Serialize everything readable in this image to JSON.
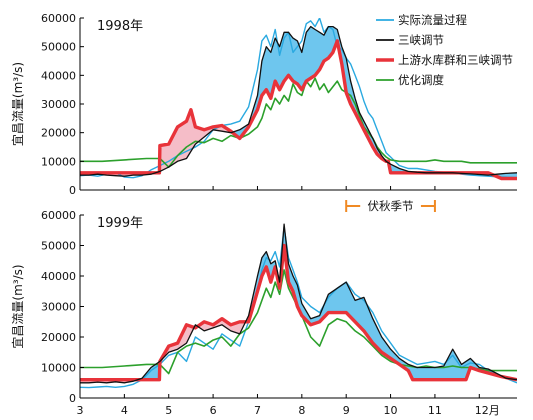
{
  "chart_data": [
    {
      "type": "line",
      "year_label": "1998年",
      "ylabel": "宜昌流量(m³/s)",
      "ylim": [
        0,
        60000
      ],
      "yticks": [
        "0",
        "10000",
        "20000",
        "30000",
        "40000",
        "50000",
        "60000"
      ],
      "xlim": [
        3,
        12.85
      ],
      "annotation": "伏秋季节",
      "annotation_range": [
        9,
        11
      ],
      "legend_position": "top-right",
      "colors": {
        "actual": "#2aa9e0",
        "three_gorges": "#111111",
        "upstream_three_gorges": "#e8333a",
        "optimized": "#2ca02c",
        "fill_blue": "#5ec0ec",
        "fill_pink": "#f4b6c2"
      },
      "series": [
        {
          "name": "实际流量过程",
          "key": "actual",
          "x": [
            3,
            3.2,
            3.4,
            3.6,
            3.8,
            4,
            4.2,
            4.4,
            4.6,
            4.8,
            5,
            5.2,
            5.4,
            5.6,
            5.8,
            6,
            6.2,
            6.4,
            6.6,
            6.8,
            7,
            7.1,
            7.2,
            7.3,
            7.4,
            7.5,
            7.6,
            7.7,
            7.8,
            7.9,
            8,
            8.1,
            8.2,
            8.3,
            8.4,
            8.5,
            8.6,
            8.7,
            8.8,
            8.9,
            9,
            9.1,
            9.2,
            9.3,
            9.4,
            9.5,
            9.6,
            9.7,
            9.8,
            9.9,
            10,
            10.2,
            10.4,
            10.6,
            10.8,
            11,
            11.2,
            11.4,
            11.6,
            11.8,
            12,
            12.2,
            12.4,
            12.6,
            12.85
          ],
          "values": [
            5000,
            5200,
            4800,
            5500,
            6000,
            4500,
            4300,
            5000,
            7000,
            8500,
            10000,
            12000,
            13500,
            15000,
            17000,
            21000,
            22500,
            23000,
            24000,
            29000,
            42000,
            52000,
            54000,
            50000,
            56000,
            47000,
            53000,
            55000,
            48000,
            50000,
            52000,
            58000,
            59000,
            57000,
            60000,
            55000,
            57000,
            56000,
            50000,
            49000,
            46000,
            44000,
            40000,
            36000,
            31000,
            27000,
            25000,
            21000,
            17000,
            13000,
            11500,
            8500,
            7500,
            7500,
            7000,
            6500,
            6200,
            6000,
            5500,
            5200,
            5000,
            4800,
            4600,
            4500,
            4300
          ]
        },
        {
          "name": "三峡调节",
          "key": "three_gorges",
          "x": [
            3,
            3.2,
            3.4,
            3.6,
            3.8,
            4,
            4.2,
            4.4,
            4.6,
            4.8,
            5,
            5.2,
            5.4,
            5.6,
            5.8,
            6,
            6.2,
            6.4,
            6.6,
            6.8,
            7,
            7.1,
            7.2,
            7.3,
            7.4,
            7.5,
            7.6,
            7.7,
            7.8,
            7.9,
            8,
            8.1,
            8.2,
            8.3,
            8.4,
            8.5,
            8.6,
            8.7,
            8.8,
            8.9,
            9,
            9.1,
            9.2,
            9.3,
            9.4,
            9.5,
            9.6,
            9.7,
            9.8,
            9.9,
            10,
            10.2,
            10.4,
            10.6,
            10.8,
            11,
            11.2,
            11.4,
            11.6,
            11.8,
            12,
            12.2,
            12.4,
            12.6,
            12.85
          ],
          "values": [
            5200,
            5200,
            5500,
            5200,
            5000,
            4800,
            5200,
            5200,
            5500,
            6500,
            8000,
            10000,
            11000,
            16000,
            18500,
            21000,
            20500,
            20000,
            21000,
            23000,
            33000,
            45000,
            50000,
            48000,
            53000,
            50000,
            55000,
            55000,
            53000,
            52000,
            48000,
            55000,
            57000,
            56000,
            55000,
            54000,
            57000,
            57000,
            56000,
            50000,
            46000,
            38000,
            32000,
            27000,
            24000,
            21000,
            18000,
            14500,
            12000,
            10000,
            9000,
            7500,
            6500,
            6200,
            6000,
            6000,
            6000,
            6000,
            5800,
            5600,
            5400,
            5200,
            5500,
            5800,
            6000
          ]
        },
        {
          "name": "上游水库群和三峡调节",
          "key": "upstream_three_gorges",
          "x": [
            3,
            3.5,
            4,
            4.3,
            4.5,
            4.79,
            4.8,
            5,
            5.2,
            5.4,
            5.5,
            5.6,
            5.8,
            6,
            6.2,
            6.4,
            6.6,
            6.8,
            7,
            7.1,
            7.2,
            7.3,
            7.4,
            7.5,
            7.6,
            7.7,
            7.8,
            7.9,
            8,
            8.1,
            8.2,
            8.3,
            8.4,
            8.5,
            8.6,
            8.7,
            8.8,
            8.9,
            9,
            9.1,
            9.2,
            9.3,
            9.4,
            9.5,
            9.6,
            9.7,
            9.8,
            9.9,
            9.95,
            10,
            10.5,
            11,
            11.5,
            12,
            12.2,
            12.5,
            12.85
          ],
          "values": [
            6000,
            6000,
            6000,
            6000,
            6000,
            6000,
            15500,
            16000,
            22000,
            24000,
            28000,
            22000,
            21000,
            22000,
            22500,
            20500,
            18000,
            22000,
            28000,
            33000,
            35000,
            32000,
            38000,
            35000,
            38000,
            40000,
            38000,
            37000,
            35000,
            38000,
            39000,
            40000,
            42000,
            45000,
            46000,
            48000,
            52000,
            44000,
            34000,
            30000,
            27000,
            24000,
            21000,
            18000,
            15000,
            12500,
            11000,
            10000,
            10000,
            6000,
            6000,
            6000,
            6000,
            6000,
            6000,
            4000,
            4000
          ]
        },
        {
          "name": "优化调度",
          "key": "optimized",
          "x": [
            3,
            3.5,
            4,
            4.5,
            4.8,
            5,
            5.2,
            5.4,
            5.6,
            5.8,
            6,
            6.2,
            6.4,
            6.6,
            6.8,
            7,
            7.1,
            7.2,
            7.3,
            7.4,
            7.5,
            7.6,
            7.7,
            7.8,
            7.9,
            8,
            8.1,
            8.2,
            8.3,
            8.4,
            8.5,
            8.6,
            8.7,
            8.8,
            8.9,
            9,
            9.1,
            9.2,
            9.3,
            9.4,
            9.5,
            9.6,
            9.7,
            9.8,
            9.9,
            10,
            10.2,
            10.4,
            10.6,
            10.8,
            11,
            11.2,
            11.4,
            11.6,
            11.8,
            12,
            12.2,
            12.4,
            12.6,
            12.85
          ],
          "values": [
            10000,
            10000,
            10500,
            11000,
            11000,
            8000,
            12000,
            15000,
            17000,
            16500,
            18000,
            17000,
            19000,
            18000,
            19500,
            22000,
            25000,
            30000,
            28000,
            32000,
            30000,
            33000,
            31000,
            37000,
            34000,
            33000,
            38000,
            36000,
            39000,
            35000,
            37000,
            34000,
            36000,
            38000,
            35000,
            34000,
            33000,
            30000,
            26000,
            22000,
            20000,
            18000,
            15000,
            13000,
            11500,
            10500,
            10000,
            10000,
            10000,
            10000,
            10500,
            10000,
            10000,
            10000,
            9500,
            9500,
            9500,
            9500,
            9500,
            9500
          ]
        }
      ]
    },
    {
      "type": "line",
      "year_label": "1999年",
      "ylabel": "宜昌流量(m³/s)",
      "ylim": [
        0,
        60000
      ],
      "yticks": [
        "0",
        "10000",
        "20000",
        "30000",
        "40000",
        "50000",
        "60000"
      ],
      "xlim": [
        3,
        12.85
      ],
      "xticks": [
        "3",
        "4",
        "5",
        "6",
        "7",
        "8",
        "9",
        "10",
        "11",
        "12月"
      ],
      "colors": {
        "actual": "#2aa9e0",
        "three_gorges": "#111111",
        "upstream_three_gorges": "#e8333a",
        "optimized": "#2ca02c",
        "fill_blue": "#5ec0ec",
        "fill_pink": "#f4b6c2"
      },
      "series": [
        {
          "key": "actual",
          "x": [
            3,
            3.2,
            3.4,
            3.6,
            3.8,
            4,
            4.2,
            4.4,
            4.6,
            4.8,
            5,
            5.2,
            5.4,
            5.6,
            5.8,
            6,
            6.2,
            6.4,
            6.6,
            6.8,
            7,
            7.1,
            7.2,
            7.3,
            7.4,
            7.5,
            7.6,
            7.7,
            7.8,
            7.9,
            8,
            8.2,
            8.4,
            8.6,
            8.8,
            9,
            9.2,
            9.4,
            9.6,
            9.8,
            10,
            10.2,
            10.4,
            10.6,
            10.8,
            11,
            11.2,
            11.4,
            11.6,
            11.8,
            12,
            12.2,
            12.4,
            12.6,
            12.85
          ],
          "values": [
            3500,
            3400,
            3600,
            3800,
            3500,
            3800,
            4500,
            6000,
            9000,
            11000,
            14000,
            15000,
            12000,
            20000,
            18000,
            16000,
            21000,
            19000,
            17000,
            25000,
            35000,
            42000,
            46000,
            45000,
            48000,
            43000,
            56000,
            46000,
            42000,
            38000,
            33000,
            30000,
            28000,
            33000,
            36000,
            38000,
            34000,
            32000,
            28000,
            22000,
            18000,
            14000,
            12500,
            11000,
            11500,
            12000,
            11000,
            14000,
            10000,
            11500,
            11000,
            9000,
            8000,
            6500,
            5000
          ]
        },
        {
          "key": "three_gorges",
          "x": [
            3,
            3.2,
            3.4,
            3.6,
            3.8,
            4,
            4.2,
            4.4,
            4.6,
            4.8,
            5,
            5.2,
            5.4,
            5.6,
            5.8,
            6,
            6.2,
            6.4,
            6.6,
            6.8,
            7,
            7.1,
            7.2,
            7.3,
            7.4,
            7.5,
            7.6,
            7.7,
            7.8,
            7.9,
            8,
            8.2,
            8.4,
            8.6,
            8.8,
            9,
            9.2,
            9.4,
            9.6,
            9.8,
            10,
            10.2,
            10.4,
            10.6,
            10.8,
            11,
            11.2,
            11.4,
            11.6,
            11.8,
            12,
            12.2,
            12.4,
            12.6,
            12.85
          ],
          "values": [
            5000,
            5000,
            5200,
            5000,
            5300,
            5000,
            5500,
            6500,
            10000,
            12000,
            15000,
            16000,
            18000,
            24000,
            22000,
            23000,
            24000,
            22000,
            21000,
            27000,
            40000,
            46000,
            48000,
            44000,
            45000,
            38000,
            57000,
            44000,
            40000,
            37000,
            31000,
            26000,
            27000,
            34000,
            36000,
            38000,
            32000,
            33000,
            26000,
            20000,
            16000,
            13000,
            11000,
            10000,
            10000,
            10000,
            10500,
            16000,
            11000,
            13000,
            10000,
            9500,
            8000,
            6500,
            6000
          ]
        },
        {
          "key": "upstream_three_gorges",
          "x": [
            3,
            3.5,
            4,
            4.5,
            4.79,
            4.8,
            5,
            5.2,
            5.4,
            5.6,
            5.8,
            6,
            6.2,
            6.4,
            6.6,
            6.8,
            7,
            7.1,
            7.2,
            7.3,
            7.4,
            7.5,
            7.6,
            7.7,
            7.8,
            7.9,
            8,
            8.2,
            8.4,
            8.6,
            8.8,
            9,
            9.2,
            9.4,
            9.6,
            9.8,
            10,
            10.2,
            10.4,
            10.5,
            10.6,
            11,
            11.5,
            11.7,
            11.8,
            12,
            12.5,
            12.85
          ],
          "values": [
            6000,
            6000,
            6000,
            6000,
            6000,
            12000,
            17000,
            18000,
            24000,
            23000,
            25000,
            24000,
            26000,
            24000,
            25000,
            25000,
            35000,
            40000,
            43000,
            38000,
            43000,
            36000,
            50000,
            38000,
            35000,
            30000,
            27000,
            24000,
            25000,
            28000,
            28000,
            28000,
            25000,
            22000,
            18000,
            15000,
            13000,
            11000,
            9000,
            6000,
            6000,
            6000,
            6000,
            6000,
            10000,
            9000,
            7000,
            6000
          ]
        },
        {
          "key": "optimized",
          "x": [
            3,
            3.5,
            4,
            4.5,
            4.8,
            5,
            5.2,
            5.4,
            5.6,
            5.8,
            6,
            6.2,
            6.4,
            6.6,
            6.8,
            7,
            7.1,
            7.2,
            7.3,
            7.4,
            7.5,
            7.6,
            7.7,
            7.8,
            7.9,
            8,
            8.2,
            8.4,
            8.6,
            8.8,
            9,
            9.2,
            9.4,
            9.6,
            9.8,
            10,
            10.2,
            10.4,
            10.6,
            10.8,
            11,
            11.2,
            11.4,
            11.6,
            11.8,
            12,
            12.2,
            12.4,
            12.6,
            12.85
          ],
          "values": [
            10000,
            10000,
            10500,
            11000,
            11000,
            8000,
            15000,
            17000,
            18000,
            17000,
            19000,
            20000,
            17000,
            21000,
            23000,
            28000,
            32000,
            36000,
            33000,
            38000,
            34000,
            42000,
            36000,
            33000,
            30000,
            27000,
            20000,
            17000,
            24000,
            26000,
            25000,
            22000,
            20000,
            17000,
            14000,
            12000,
            11000,
            10500,
            10000,
            10500,
            10000,
            10000,
            10500,
            10000,
            10000,
            9500,
            9000,
            9000,
            9000,
            9000
          ]
        }
      ]
    }
  ]
}
